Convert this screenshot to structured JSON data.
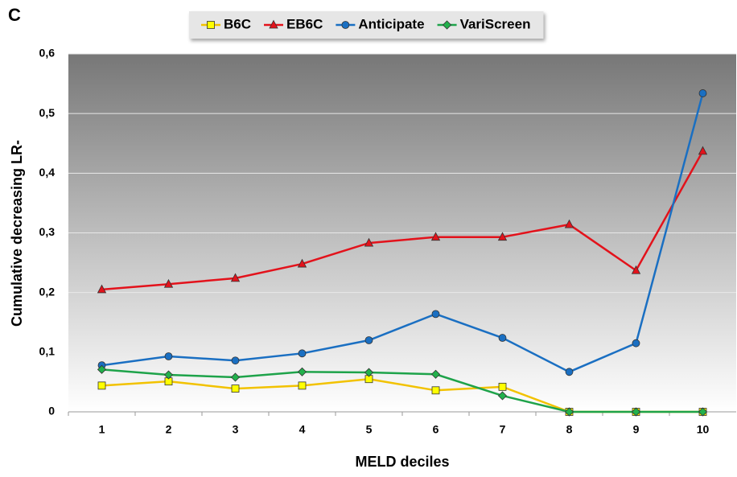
{
  "chart_data": {
    "type": "line",
    "panel_label": "C",
    "x_label": "MELD deciles",
    "y_label": "Cumulative decreasing LR-",
    "categories": [
      1,
      2,
      3,
      4,
      5,
      6,
      7,
      8,
      9,
      10
    ],
    "ylim": [
      0,
      0.6
    ],
    "yticks": [
      0,
      {
        "value": 0.1,
        "label": "0,1"
      },
      {
        "value": 0.2,
        "label": "0,2"
      },
      {
        "value": 0.3,
        "label": "0,3"
      },
      {
        "value": 0.4,
        "label": "0,4"
      },
      {
        "value": 0.5,
        "label": "0,5"
      },
      {
        "value": 0.6,
        "label": "0,6"
      }
    ],
    "grid": true,
    "legend": "top",
    "series": [
      {
        "name": "B6C",
        "color": "#f2c200",
        "marker_color": "#ffff00",
        "marker": "square",
        "values": [
          0.044,
          0.051,
          0.039,
          0.044,
          0.055,
          0.036,
          0.042,
          0,
          0,
          0
        ]
      },
      {
        "name": "EB6C",
        "color": "#e3121b",
        "marker_color": "#e3121b",
        "marker": "triangle",
        "values": [
          0.205,
          0.214,
          0.224,
          0.248,
          0.283,
          0.293,
          0.293,
          0.314,
          0.237,
          0.437
        ]
      },
      {
        "name": "Anticipate",
        "color": "#1a6fc2",
        "marker_color": "#1a6fc2",
        "marker": "circle",
        "values": [
          0.078,
          0.093,
          0.086,
          0.098,
          0.12,
          0.164,
          0.124,
          0.067,
          0.115,
          0.534
        ]
      },
      {
        "name": "VariScreen",
        "color": "#1ea34a",
        "marker_color": "#22b14c",
        "marker": "diamond",
        "values": [
          0.071,
          0.062,
          0.058,
          0.067,
          0.066,
          0.063,
          0.027,
          0,
          0,
          0
        ]
      }
    ]
  }
}
